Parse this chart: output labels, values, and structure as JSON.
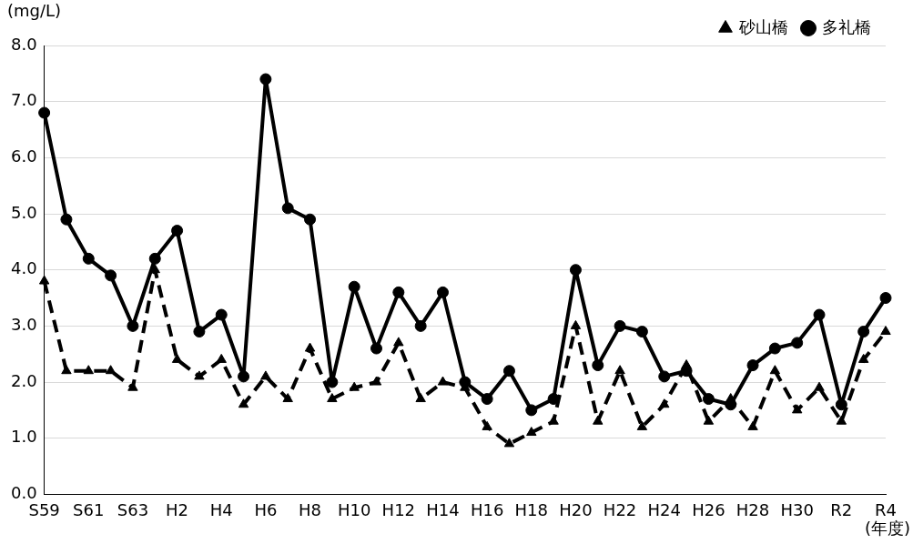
{
  "chart_data": {
    "type": "line",
    "ylabel": "(mg/L)",
    "xlabel": "(年度)",
    "categories": [
      "S59",
      null,
      "S61",
      null,
      "S63",
      null,
      "H2",
      null,
      "H4",
      null,
      "H6",
      null,
      "H8",
      null,
      "H10",
      null,
      "H12",
      null,
      "H14",
      null,
      "H16",
      null,
      "H18",
      null,
      "H20",
      null,
      "H22",
      null,
      "H24",
      null,
      "H26",
      null,
      "H28",
      null,
      "H30",
      null,
      "R2",
      null,
      "R4"
    ],
    "series": [
      {
        "name": "砂山橋",
        "color": "#000000",
        "marker": "triangle",
        "line_style": "dashed",
        "values": [
          3.8,
          2.2,
          2.2,
          2.2,
          1.9,
          4.0,
          2.4,
          2.1,
          2.4,
          1.6,
          2.1,
          1.7,
          2.6,
          1.7,
          1.9,
          2.0,
          2.7,
          1.7,
          2.0,
          1.9,
          1.2,
          0.9,
          1.1,
          1.3,
          3.0,
          1.3,
          2.2,
          1.2,
          1.6,
          2.3,
          1.3,
          1.7,
          1.2,
          2.2,
          1.5,
          1.9,
          1.3,
          2.4,
          2.9
        ]
      },
      {
        "name": "多礼橋",
        "color": "#000000",
        "marker": "circle",
        "line_style": "solid",
        "values": [
          6.8,
          4.9,
          4.2,
          3.9,
          3.0,
          4.2,
          4.7,
          2.9,
          3.2,
          2.1,
          7.4,
          5.1,
          4.9,
          2.0,
          3.7,
          2.6,
          3.6,
          3.0,
          3.6,
          2.0,
          1.7,
          2.2,
          1.5,
          1.7,
          4.0,
          2.3,
          3.0,
          2.9,
          2.1,
          2.2,
          1.7,
          1.6,
          2.3,
          2.6,
          2.7,
          3.2,
          1.6,
          2.9,
          3.5
        ]
      }
    ],
    "ylim": [
      0,
      8
    ],
    "yticks": [
      {
        "value": 0,
        "label": "0.0"
      },
      {
        "value": 1,
        "label": "1.0"
      },
      {
        "value": 2,
        "label": "2.0"
      },
      {
        "value": 3,
        "label": "3.0"
      },
      {
        "value": 4,
        "label": "4.0"
      },
      {
        "value": 5,
        "label": "5.0"
      },
      {
        "value": 6,
        "label": "6.0"
      },
      {
        "value": 7,
        "label": "7.0"
      },
      {
        "value": 8,
        "label": "8.0"
      }
    ],
    "grid": "y",
    "legend": "top right"
  }
}
